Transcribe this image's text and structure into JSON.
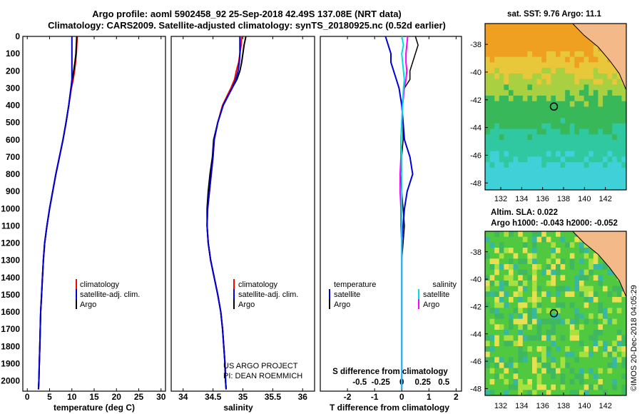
{
  "header": {
    "title_line1": "Argo profile: aoml 5902458_92 25-Sep-2018 42.49S 137.08E (NRT data)",
    "title_line2": "Climatology: CARS2009. Satellite-adjusted climatology: synTS_20180925.nc (0.52d earlier)"
  },
  "colors": {
    "climatology": "#ff0000",
    "satellite": "#0000dd",
    "argo": "#000000",
    "sat_salinity": "#00dddd",
    "argo_salinity": "#ff00ff",
    "land": "#f4b988"
  },
  "depth_axis": {
    "ticks": [
      "0",
      "100",
      "200",
      "300",
      "400",
      "500",
      "600",
      "700",
      "800",
      "900",
      "1000",
      "1100",
      "1200",
      "1300",
      "1400",
      "1500",
      "1600",
      "1700",
      "1800",
      "1900",
      "2000"
    ],
    "max": 2060
  },
  "panels": {
    "temperature": {
      "xlabel": "temperature (deg C)",
      "xlim": [
        -1,
        31
      ],
      "ticks": [
        "0",
        "5",
        "10",
        "15",
        "20",
        "25",
        "30"
      ],
      "legend": [
        "climatology",
        "satellite-adj. clim.",
        "Argo"
      ]
    },
    "salinity": {
      "xlabel": "salinity",
      "xlim": [
        33.8,
        36.2
      ],
      "ticks": [
        "34",
        "34.5",
        "35",
        "35.5",
        "36"
      ],
      "legend": [
        "climatology",
        "satellite-adj. clim.",
        "Argo"
      ],
      "credit1": "US ARGO PROJECT",
      "credit2": "PI: DEAN ROEMMICH"
    },
    "difference": {
      "xlabel": "T difference from climatology",
      "xlim": [
        -3,
        2.2
      ],
      "ticks": [
        "-2",
        "-1",
        "0",
        "1",
        "2"
      ],
      "s_title": "S difference from climatology",
      "s_ticks": [
        "-0.5",
        "-0.25",
        "0",
        "0.25",
        "0.5"
      ],
      "temp_legend_title": "temperature",
      "temp_legend": [
        "satellite",
        "Argo"
      ],
      "sal_legend_title": "salinity",
      "sal_legend": [
        "satellite",
        "Argo"
      ]
    }
  },
  "maps": {
    "sst_title": "sat. SST: 9.76 Argo: 11.1",
    "sla_title1": "Altim. SLA: 0.022",
    "sla_title2": "Argo h1000: -0.043 h2000: -0.052",
    "lon_ticks": [
      "132",
      "134",
      "136",
      "138",
      "140",
      "142"
    ],
    "lat_ticks": [
      "-38",
      "-40",
      "-42",
      "-44",
      "-46",
      "-48"
    ],
    "lon_range": [
      130.5,
      144
    ],
    "lat_range": [
      -36.5,
      -48.5
    ],
    "float_lon": 137.08,
    "float_lat": -42.49
  },
  "footer": {
    "imos_stamp": "©IMOS 20-Dec-2018 04:05:29"
  },
  "chart_data": {
    "type": "line",
    "title": "Argo profile: aoml 5902458_92 25-Sep-2018 42.49S 137.08E (NRT data)",
    "depth": [
      0,
      50,
      100,
      150,
      200,
      250,
      300,
      400,
      500,
      600,
      700,
      800,
      900,
      1000,
      1100,
      1200,
      1300,
      1400,
      1500,
      1600,
      1700,
      1800,
      1900,
      2000,
      2050
    ],
    "temperature": {
      "climatology": [
        11.2,
        11.1,
        11.0,
        10.8,
        10.6,
        10.3,
        9.9,
        9.3,
        8.7,
        8.0,
        7.2,
        6.4,
        5.7,
        5.0,
        4.4,
        3.9,
        3.6,
        3.4,
        3.2,
        3.0,
        2.9,
        2.8,
        2.7,
        2.6,
        2.5
      ],
      "satellite": [
        10.0,
        10.0,
        10.0,
        10.0,
        10.0,
        10.0,
        9.8,
        9.3,
        8.7,
        8.0,
        7.2,
        6.4,
        5.7,
        5.0,
        4.4,
        3.9,
        3.6,
        3.4,
        3.2,
        3.0,
        2.9,
        2.8,
        2.7,
        2.6,
        2.5
      ],
      "argo": [
        11.1,
        11.0,
        10.9,
        10.7,
        10.4,
        10.1,
        9.8,
        9.3,
        8.7,
        8.0,
        7.2,
        6.4,
        5.7,
        5.0,
        4.4,
        3.9,
        3.6,
        3.4,
        3.2,
        3.0,
        2.9,
        2.8,
        2.7,
        2.6,
        2.5
      ]
    },
    "salinity": {
      "climatology": [
        34.98,
        34.97,
        34.95,
        34.93,
        34.89,
        34.86,
        34.8,
        34.66,
        34.58,
        34.52,
        34.5,
        34.47,
        34.44,
        34.41,
        34.4,
        34.42,
        34.46,
        34.52,
        34.58,
        34.63,
        34.66,
        34.68,
        34.7,
        34.71,
        34.72
      ],
      "satellite": [
        34.95,
        34.95,
        34.95,
        34.94,
        34.92,
        34.88,
        34.82,
        34.67,
        34.58,
        34.52,
        34.5,
        34.47,
        34.44,
        34.41,
        34.4,
        34.42,
        34.46,
        34.52,
        34.58,
        34.63,
        34.66,
        34.68,
        34.7,
        34.71,
        34.72
      ],
      "argo": [
        35.05,
        35.02,
        35.0,
        34.98,
        34.95,
        34.9,
        34.82,
        34.67,
        34.58,
        34.51,
        34.49,
        34.45,
        34.42,
        34.4,
        34.4,
        34.42,
        34.46,
        34.52,
        34.58,
        34.63,
        34.66,
        34.68,
        34.7,
        34.71,
        34.72
      ]
    },
    "t_difference": {
      "satellite": [
        -0.6,
        -0.5,
        -0.4,
        -0.4,
        -0.3,
        -0.2,
        -0.1,
        0.0,
        0.05,
        0.1,
        0.3,
        0.4,
        0.2,
        0.1,
        0.05,
        0.0,
        0.0,
        0.0,
        0.0,
        0.0,
        0.0,
        0.0,
        0.0,
        0.0,
        0.0
      ],
      "argo": [
        0.5,
        0.6,
        0.5,
        0.4,
        0.3,
        0.3,
        0.1,
        0.0,
        0.05,
        0.05,
        0.0,
        -0.05,
        0.0,
        0.05,
        0.1,
        0.05,
        0.0,
        0.0,
        0.0,
        0.0,
        0.0,
        0.0,
        0.0,
        0.0,
        0.0
      ]
    },
    "s_difference": {
      "satellite": [
        0.0,
        0.02,
        0.0,
        0.01,
        0.02,
        0.03,
        0.02,
        0.01,
        0.0,
        -0.01,
        0.0,
        0.0,
        0.0,
        0.0,
        0.0,
        0.0,
        0.0,
        0.0,
        0.0,
        0.0,
        0.0,
        0.0,
        0.0,
        0.0,
        0.0
      ],
      "argo": [
        0.07,
        0.06,
        0.05,
        0.05,
        0.06,
        0.05,
        0.03,
        0.01,
        0.0,
        -0.01,
        -0.01,
        -0.02,
        -0.02,
        -0.01,
        -0.01,
        0.0,
        0.0,
        0.0,
        0.0,
        0.0,
        0.0,
        0.0,
        0.0,
        0.0,
        0.0
      ]
    }
  }
}
